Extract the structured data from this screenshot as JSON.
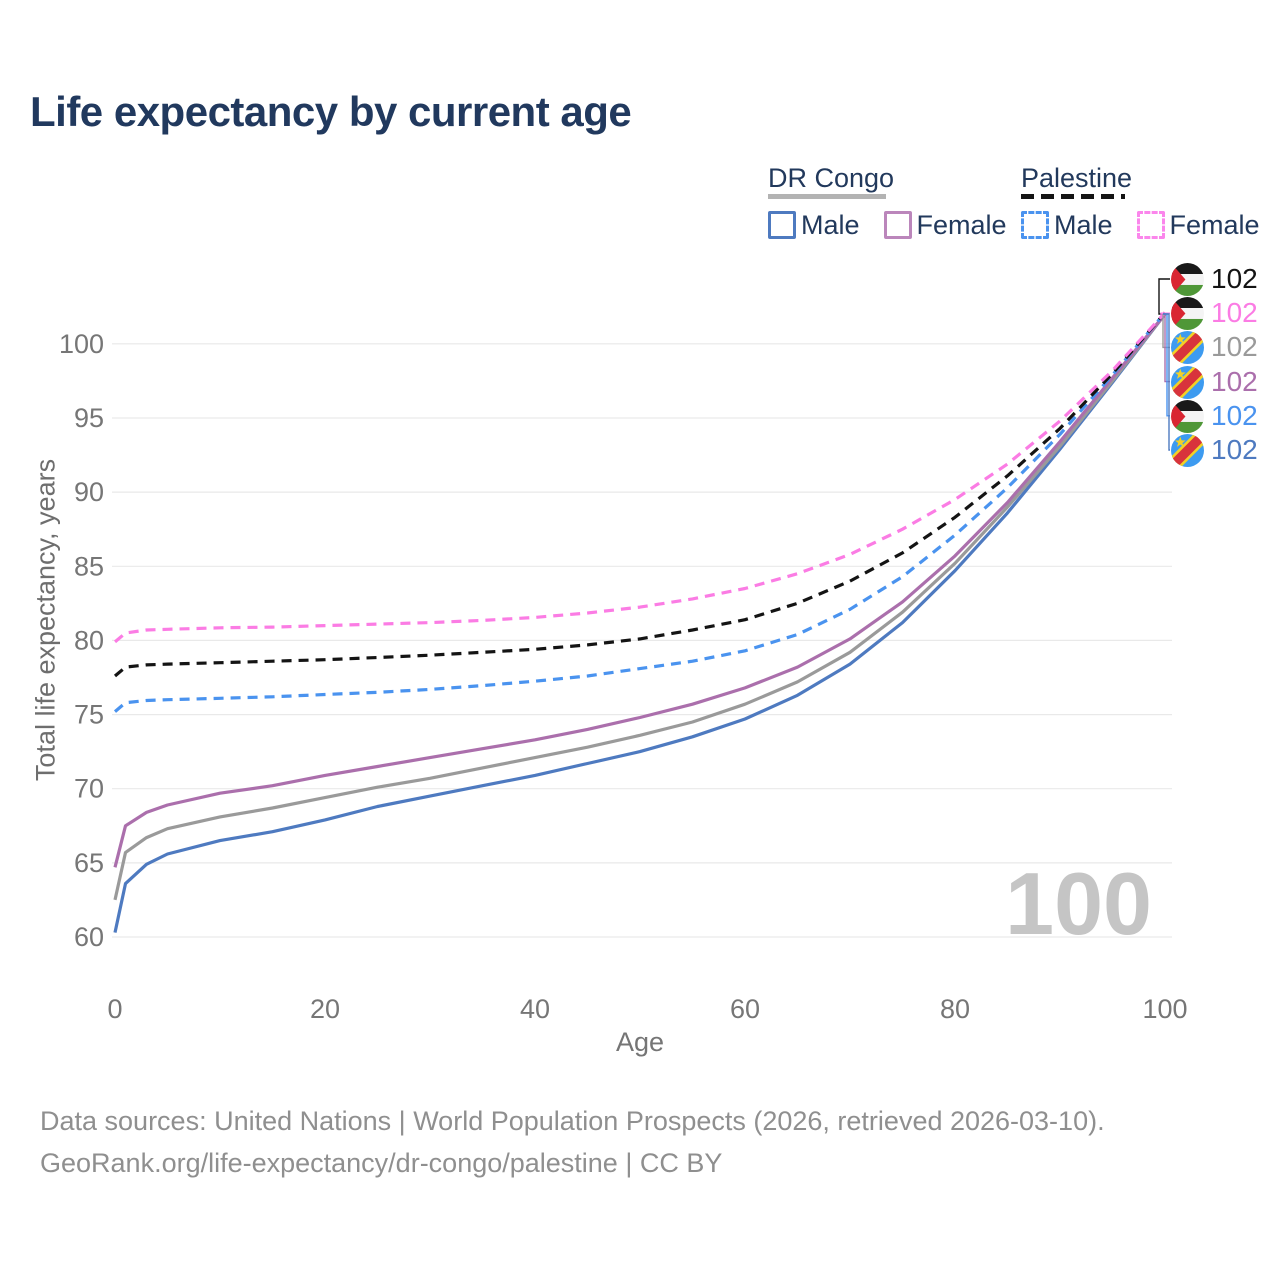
{
  "page": {
    "title": "Life expectancy by current age",
    "watermark_age": "100"
  },
  "legend": {
    "groups": [
      {
        "name": "DR Congo",
        "line_style": "solid",
        "line_color": "#b3b3b3",
        "items": [
          {
            "label": "Male",
            "color": "#4e7ac0",
            "box_style": "solid"
          },
          {
            "label": "Female",
            "color": "#bb86bb",
            "box_style": "solid"
          }
        ]
      },
      {
        "name": "Palestine",
        "line_style": "dashed",
        "line_color": "#141414",
        "items": [
          {
            "label": "Male",
            "color": "#4a93ef",
            "box_style": "dashed"
          },
          {
            "label": "Female",
            "color": "#fb86ec",
            "box_style": "dashed"
          }
        ]
      }
    ]
  },
  "chart_data": {
    "type": "line",
    "title": "Life expectancy by current age",
    "xlabel": "Age",
    "ylabel": "Total life expectancy, years",
    "xlim": [
      0,
      100
    ],
    "ylim": [
      60,
      102.5
    ],
    "x_ticks": [
      0,
      20,
      40,
      60,
      80,
      100
    ],
    "y_ticks": [
      60,
      65,
      70,
      75,
      80,
      85,
      90,
      95,
      100
    ],
    "grid": "horizontal-only",
    "legend_position": "top-right",
    "x": [
      0,
      1,
      3,
      5,
      10,
      15,
      20,
      25,
      30,
      35,
      40,
      45,
      50,
      55,
      60,
      65,
      70,
      75,
      80,
      85,
      90,
      95,
      100
    ],
    "series": [
      {
        "id": "drc_male",
        "name": "DR Congo Male",
        "country": "DR Congo",
        "sex": "Male",
        "color": "#4e7ac0",
        "dash": "solid",
        "values": [
          60.3,
          63.6,
          64.9,
          65.6,
          66.5,
          67.1,
          67.9,
          68.8,
          69.5,
          70.2,
          70.9,
          71.7,
          72.5,
          73.5,
          74.7,
          76.3,
          78.4,
          81.2,
          84.7,
          88.6,
          92.9,
          97.4,
          102
        ]
      },
      {
        "id": "drc_total",
        "name": "DR Congo (both sexes)",
        "country": "DR Congo",
        "sex": "Both",
        "color": "#9a9a9a",
        "dash": "solid",
        "values": [
          62.5,
          65.7,
          66.7,
          67.3,
          68.1,
          68.7,
          69.4,
          70.1,
          70.7,
          71.4,
          72.1,
          72.8,
          73.6,
          74.5,
          75.7,
          77.2,
          79.2,
          81.9,
          85.2,
          89.0,
          93.1,
          97.5,
          102
        ]
      },
      {
        "id": "drc_female",
        "name": "DR Congo Female",
        "country": "DR Congo",
        "sex": "Female",
        "color": "#ab6fac",
        "dash": "solid",
        "values": [
          64.7,
          67.5,
          68.4,
          68.9,
          69.7,
          70.2,
          70.9,
          71.5,
          72.1,
          72.7,
          73.3,
          74.0,
          74.8,
          75.7,
          76.8,
          78.2,
          80.1,
          82.6,
          85.7,
          89.3,
          93.4,
          97.7,
          102
        ]
      },
      {
        "id": "palestine_male",
        "name": "Palestine Male",
        "country": "Palestine",
        "sex": "Male",
        "color": "#4a93ef",
        "dash": "dashed",
        "values": [
          75.2,
          75.8,
          75.95,
          76.0,
          76.1,
          76.2,
          76.35,
          76.5,
          76.7,
          76.95,
          77.25,
          77.6,
          78.1,
          78.6,
          79.3,
          80.4,
          82.1,
          84.3,
          87.1,
          90.3,
          93.9,
          97.9,
          102.1
        ]
      },
      {
        "id": "palestine_total",
        "name": "Palestine (both sexes)",
        "country": "Palestine",
        "sex": "Both",
        "color": "#141414",
        "dash": "dashed",
        "values": [
          77.6,
          78.2,
          78.35,
          78.4,
          78.5,
          78.6,
          78.7,
          78.85,
          79.0,
          79.2,
          79.4,
          79.7,
          80.1,
          80.7,
          81.4,
          82.5,
          84.0,
          85.9,
          88.3,
          91.1,
          94.3,
          98.0,
          102.1
        ]
      },
      {
        "id": "palestine_female",
        "name": "Palestine Female",
        "country": "Palestine",
        "sex": "Female",
        "color": "#fb7ce4",
        "dash": "dashed",
        "values": [
          79.9,
          80.5,
          80.7,
          80.75,
          80.85,
          80.9,
          81.0,
          81.1,
          81.2,
          81.35,
          81.55,
          81.85,
          82.25,
          82.8,
          83.5,
          84.5,
          85.8,
          87.5,
          89.5,
          91.9,
          94.8,
          98.2,
          102.1
        ]
      }
    ],
    "end_labels": [
      {
        "series": "palestine_total",
        "flag": "palestine",
        "value": "102",
        "color": "#141414"
      },
      {
        "series": "palestine_female",
        "flag": "palestine",
        "value": "102",
        "color": "#fb7ce4"
      },
      {
        "series": "drc_total",
        "flag": "dr-congo",
        "value": "102",
        "color": "#9a9a9a"
      },
      {
        "series": "drc_female",
        "flag": "dr-congo",
        "value": "102",
        "color": "#ab6fac"
      },
      {
        "series": "palestine_male",
        "flag": "palestine",
        "value": "102",
        "color": "#4a93ef"
      },
      {
        "series": "drc_male",
        "flag": "dr-congo",
        "value": "102",
        "color": "#4e7ac0"
      }
    ]
  },
  "footer": {
    "line1": "Data sources: United Nations | World Population Prospects (2026, retrieved 2026-03-10).",
    "line2": "GeoRank.org/life-expectancy/dr-congo/palestine | CC BY"
  }
}
